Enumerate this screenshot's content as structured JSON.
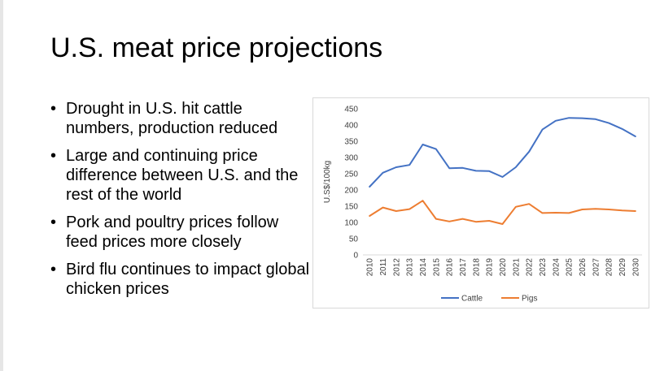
{
  "slide": {
    "title": "U.S. meat price projections",
    "bullets": [
      "Drought in U.S. hit cattle numbers, production reduced",
      "Large and continuing price difference between U.S. and the rest of the world",
      "Pork and poultry prices follow feed prices more closely",
      "Bird flu continues to impact global chicken prices"
    ],
    "bullet_symbol": "•"
  },
  "chart_data": {
    "type": "line",
    "x": [
      "2010",
      "2011",
      "2012",
      "2013",
      "2014",
      "2015",
      "2016",
      "2017",
      "2018",
      "2019",
      "2020",
      "2021",
      "2022",
      "2023",
      "2024",
      "2025",
      "2026",
      "2027",
      "2028",
      "2029",
      "2030"
    ],
    "series": [
      {
        "name": "Cattle",
        "color": "#4472c4",
        "values": [
          210,
          253,
          270,
          277,
          340,
          326,
          267,
          268,
          259,
          258,
          240,
          270,
          318,
          386,
          413,
          422,
          421,
          418,
          406,
          388,
          365
        ]
      },
      {
        "name": "Pigs",
        "color": "#ed7d31",
        "values": [
          120,
          146,
          135,
          141,
          167,
          111,
          103,
          111,
          102,
          105,
          95,
          148,
          157,
          129,
          130,
          129,
          140,
          142,
          140,
          137,
          135
        ]
      }
    ],
    "ylabel": "U.S$/100kg",
    "ylim": [
      0,
      450
    ],
    "yticks": [
      0,
      50,
      100,
      150,
      200,
      250,
      300,
      350,
      400,
      450
    ],
    "grid": false,
    "legend": "bottom"
  }
}
